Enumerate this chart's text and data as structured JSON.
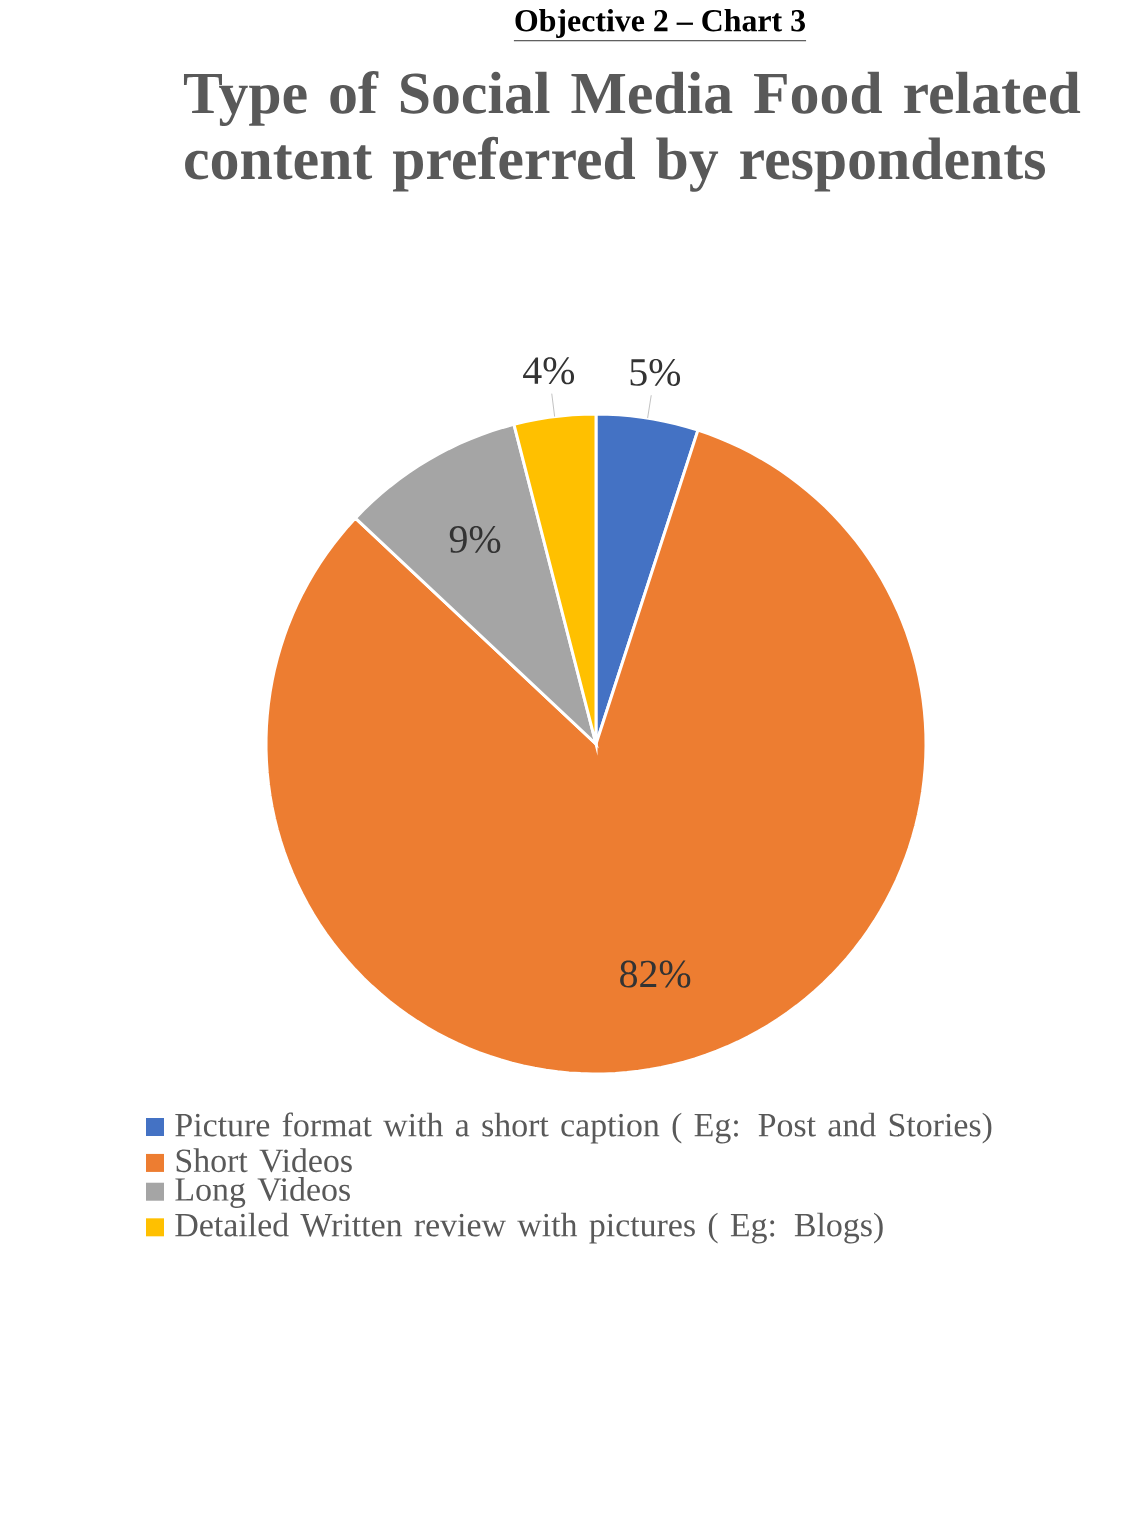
{
  "chart_data": {
    "type": "pie",
    "title": "Type of Social Media Food related content preferred by respondents",
    "annotations": [
      "Objective 2 – Chart 3"
    ],
    "categories": [
      "Picture format with a short caption ( Eg: Post and Stories)",
      "Short Videos",
      "Long Videos",
      "Detailed Written review with pictures ( Eg: Blogs)"
    ],
    "values": [
      5,
      82,
      9,
      4
    ],
    "colors": [
      "#4472c4",
      "#ed7d31",
      "#a5a5a5",
      "#ffc000"
    ],
    "value_labels": [
      "5%",
      "82%",
      "9%",
      "4%"
    ],
    "legend": "bottom"
  }
}
